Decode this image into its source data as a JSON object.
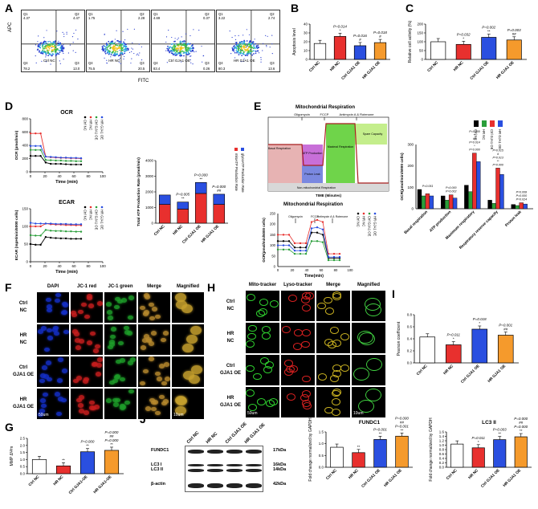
{
  "panels": {
    "A": "A",
    "B": "B",
    "C": "C",
    "D": "D",
    "E": "E",
    "F": "F",
    "G": "G",
    "H": "H",
    "I": "I",
    "J": "J"
  },
  "flow": {
    "ylabel": "APC",
    "xlabel": "FITC",
    "plots": [
      {
        "label": "Ctrl NC",
        "q1": "4.37",
        "q2": "4.47",
        "q3": "13.0",
        "q4": "78.2"
      },
      {
        "label": "HR NC",
        "q1": "1.75",
        "q2": "2.28",
        "q3": "20.5",
        "q4": "75.5"
      },
      {
        "label": "Ctrl GJA1 OE",
        "q1": "4.69",
        "q2": "0.37",
        "q3": "0.26",
        "q4": "83.4"
      },
      {
        "label": "HR GJA1 OE",
        "q1": "3.22",
        "q2": "2.74",
        "q3": "13.6",
        "q4": "80.3"
      }
    ],
    "quad_names": [
      "Q1",
      "Q2",
      "Q3",
      "Q4"
    ]
  },
  "chart_data": [
    {
      "type": "bar",
      "panel": "B",
      "categories": [
        "Ctrl NC",
        "HR NC",
        "Ctrl GJA1 OE",
        "HR GJA1 OE"
      ],
      "values": [
        18,
        26,
        15.5,
        19
      ],
      "ylabel": "Apoptosis level",
      "ylim": [
        0,
        40
      ],
      "yticks": [
        "0",
        "10",
        "20",
        "30",
        "40"
      ],
      "annotations": [
        "",
        "P=0.014\n*",
        "P=0.016\n#",
        "P=0.018\n#"
      ],
      "colors": [
        "#ffffff",
        "#e8302e",
        "#2a4fe0",
        "#f59a2c"
      ]
    },
    {
      "type": "bar",
      "panel": "C",
      "categories": [
        "Ctrl NC",
        "HR NC",
        "Ctrl GJA1 OE",
        "HR GJA1 OE"
      ],
      "values": [
        100,
        85,
        125,
        110
      ],
      "ylabel": "Relative cell activity (%)",
      "ylim": [
        0,
        200
      ],
      "yticks": [
        "0",
        "50",
        "100",
        "150",
        "200"
      ],
      "annotations": [
        "",
        "P=0.032\n*",
        "P=0.002\n**",
        "P=0.003\n##"
      ],
      "colors": [
        "#ffffff",
        "#e8302e",
        "#2a4fe0",
        "#f59a2c"
      ]
    },
    {
      "type": "line",
      "panel": "D-OCR",
      "title": "OCR",
      "xlabel": "Time (min)",
      "ylabel": "OCR (pmol/min)",
      "xlim": [
        0,
        100
      ],
      "ylim": [
        0,
        800
      ],
      "yticks": [
        "0",
        "200",
        "400",
        "600",
        "800"
      ],
      "xticks": [
        "0",
        "20",
        "40",
        "60",
        "80",
        "100"
      ],
      "x": [
        0,
        7,
        14,
        21,
        28,
        35,
        42,
        49,
        56,
        63,
        70
      ],
      "series": [
        {
          "name": "Ctrl NC",
          "color": "#000000",
          "values": [
            240,
            240,
            240,
            140,
            120,
            120,
            120,
            115,
            110,
            110,
            110
          ]
        },
        {
          "name": "HR NC",
          "color": "#e8302e",
          "values": [
            580,
            580,
            580,
            230,
            220,
            215,
            210,
            210,
            205,
            205,
            200
          ]
        },
        {
          "name": "Ctrl GJA1 OE",
          "color": "#2a9e3a",
          "values": [
            330,
            330,
            330,
            180,
            175,
            170,
            170,
            165,
            165,
            160,
            160
          ]
        },
        {
          "name": "HR GJA1 OE",
          "color": "#2a4fe0",
          "values": [
            390,
            390,
            390,
            230,
            225,
            220,
            215,
            215,
            210,
            210,
            205
          ]
        }
      ]
    },
    {
      "type": "line",
      "panel": "D-ECAR",
      "title": "ECAR",
      "xlabel": "Time (min)",
      "ylabel": "ECAR (mpH/min/5000 cells)",
      "xlim": [
        0,
        100
      ],
      "ylim": [
        0,
        150
      ],
      "yticks": [
        "0",
        "50",
        "100",
        "150"
      ],
      "xticks": [
        "0",
        "20",
        "40",
        "60",
        "80",
        "100"
      ],
      "x": [
        0,
        7,
        14,
        21,
        28,
        35,
        42,
        49,
        56,
        63,
        70
      ],
      "series": [
        {
          "name": "Ctrl NC",
          "color": "#000000",
          "values": [
            50,
            48,
            48,
            70,
            68,
            67,
            66,
            66,
            65,
            65,
            65
          ]
        },
        {
          "name": "HR NC",
          "color": "#e8302e",
          "values": [
            100,
            100,
            100,
            108,
            106,
            105,
            105,
            104,
            104,
            103,
            103
          ]
        },
        {
          "name": "Ctrl GJA1 OE",
          "color": "#2a9e3a",
          "values": [
            75,
            74,
            74,
            90,
            88,
            87,
            87,
            86,
            86,
            85,
            85
          ]
        },
        {
          "name": "HR GJA1 OE",
          "color": "#2a4fe0",
          "values": [
            110,
            108,
            108,
            108,
            108,
            107,
            107,
            107,
            106,
            106,
            106
          ]
        }
      ]
    },
    {
      "type": "bar",
      "panel": "D-ATP",
      "categories": [
        "Ctrl NC",
        "HR NC",
        "Ctrl GJA1 OE",
        "HR GJA1 OE"
      ],
      "ylabel": "Total ATP Production Rate (pmol/min)",
      "ylim": [
        0,
        4000
      ],
      "yticks": [
        "0",
        "1000",
        "2000",
        "3000",
        "4000"
      ],
      "series": [
        {
          "name": "mitoATP Production Rate",
          "color": "#e8302e",
          "values": [
            1200,
            900,
            1900,
            1200
          ]
        },
        {
          "name": "glycoATP Production Rate",
          "color": "#2a4fe0",
          "values": [
            600,
            450,
            700,
            650
          ]
        }
      ],
      "annotations": [
        "",
        "P=0.005\n**",
        "P=0.000\n**",
        "P=0.000\n##"
      ]
    },
    {
      "type": "bar",
      "panel": "E-bar",
      "categories": [
        "Basal respiration",
        "ATP production",
        "Maximum respiratory",
        "Respiratory reserve capacity",
        "Proton leak"
      ],
      "ylabel": "OCR(pmol/min/5000 cells)",
      "ylim": [
        0,
        300
      ],
      "yticks": [
        "0",
        "100",
        "200",
        "300"
      ],
      "series": [
        {
          "name": "Ctrl NC",
          "color": "#000000",
          "values": [
            90,
            60,
            110,
            40,
            20
          ]
        },
        {
          "name": "HR NC",
          "color": "#2a9e3a",
          "values": [
            60,
            40,
            80,
            25,
            15
          ]
        },
        {
          "name": "Ctrl GJA1 OE",
          "color": "#e8302e",
          "values": [
            70,
            65,
            260,
            190,
            28
          ]
        },
        {
          "name": "HR GJA1 OE",
          "color": "#2a4fe0",
          "values": [
            60,
            50,
            220,
            160,
            22
          ]
        }
      ],
      "annotations": [
        "P=0.051",
        "P=0.000\nP=0.002",
        "P=0.000\n**\n##\nP=0.014\n*\nP=0.000",
        "P=0.015\n#\nP=0.013\n**\nP=0.000",
        "P=0.008\nP=0.000\nP=0.024"
      ]
    },
    {
      "type": "bar",
      "panel": "G",
      "categories": [
        "Ctrl NC",
        "HR NC",
        "Ctrl GJA1-OE",
        "HR GJA1-OE"
      ],
      "values": [
        1.0,
        0.55,
        1.55,
        1.65
      ],
      "ylabel": "MMP ΔΨm",
      "ylim": [
        0,
        2.5
      ],
      "yticks": [
        "0.0",
        "0.5",
        "1.0",
        "1.5",
        "2.0",
        "2.5"
      ],
      "annotations": [
        "",
        "**",
        "P=0.000\n**",
        "P=0.000\n##\nP=0.000\n**"
      ],
      "colors": [
        "#ffffff",
        "#e8302e",
        "#2a4fe0",
        "#f59a2c"
      ]
    },
    {
      "type": "bar",
      "panel": "I",
      "categories": [
        "Ctrl NC",
        "HR NC",
        "Ctrl GJA1 OE",
        "HR GJA1 OE"
      ],
      "values": [
        0.43,
        0.3,
        0.56,
        0.46
      ],
      "ylabel": "Pearson coefficient",
      "ylim": [
        0,
        0.8
      ],
      "yticks": [
        "0.0",
        "0.2",
        "0.4",
        "0.6",
        "0.8"
      ],
      "annotations": [
        "",
        "P=0.011\n*",
        "P=0.018\n*",
        "P=0.001\n##"
      ],
      "colors": [
        "#ffffff",
        "#e8302e",
        "#2a4fe0",
        "#f59a2c"
      ]
    },
    {
      "type": "bar",
      "panel": "J-FUNDC1",
      "title": "FUNDC1",
      "categories": [
        "Ctrl NC",
        "HR NC",
        "Ctrl GJA1 OE",
        "HR GJA1 OE"
      ],
      "values": [
        0.85,
        0.62,
        1.18,
        1.32
      ],
      "ylabel": "Fold change normalized by GAPDH",
      "ylim": [
        0,
        1.5
      ],
      "yticks": [
        "0.0",
        "0.5",
        "1.0",
        "1.5"
      ],
      "annotations": [
        "",
        "**",
        "P=0.001\n**",
        "P=0.000\n##\nP=0.001\n**"
      ],
      "colors": [
        "#ffffff",
        "#e8302e",
        "#2a4fe0",
        "#f59a2c"
      ]
    },
    {
      "type": "bar",
      "panel": "J-LC3",
      "title": "LC3 II",
      "categories": [
        "Ctrl NC",
        "HR NC",
        "Ctrl GJA1 OE",
        "HR GJA1 OE"
      ],
      "values": [
        1.05,
        0.88,
        1.25,
        1.38
      ],
      "ylabel": "Fold change normalized by GAPDH",
      "ylim": [
        0,
        1.6
      ],
      "yticks": [
        "0.0",
        "0.2",
        "0.4",
        "0.6",
        "0.8",
        "1.0",
        "1.2",
        "1.4",
        "1.6"
      ],
      "annotations": [
        "",
        "P=0.011\n*",
        "P=0.003\n**",
        "P=0.000\n##\nP=0.000\n**"
      ],
      "colors": [
        "#ffffff",
        "#e8302e",
        "#2a4fe0",
        "#f59a2c"
      ]
    }
  ],
  "mito_resp": {
    "title": "Mitochondrial Respiration",
    "title2": "Mitochondrial Respiration",
    "time_label": "TIME (Minutes)",
    "time_label2": "Time(min)",
    "ylabel2": "OCR(pmol/min/5000 cells)",
    "injections": [
      "Oligomycin",
      "FCCP",
      "Antimycin A & Rotenone"
    ],
    "regions": [
      "Basal Respiration",
      "ATP Production",
      "Proton Leak",
      "Maximal Respiration",
      "Spare Capacity",
      "Non-mitochondrial Respiration"
    ],
    "legend": [
      "Ctrl NC",
      "HR NC",
      "Ctrl GJA1 OE",
      "HR GJA1 OE"
    ]
  },
  "jc1": {
    "headers": [
      "DAPI",
      "JC-1 red",
      "JC-1 green",
      "Merge",
      "Magnified"
    ],
    "rows": [
      [
        "Ctrl",
        "NC"
      ],
      [
        "HR",
        "NC"
      ],
      [
        "Ctrl",
        "GJA1 OE"
      ],
      [
        "HR",
        "GJA1 OE"
      ]
    ],
    "scale1": "50um",
    "scale2": "10um"
  },
  "mito": {
    "headers": [
      "Mito-tracker",
      "Lyso-tracker",
      "Merge",
      "Magnified"
    ],
    "rows": [
      [
        "Ctrl",
        "NC"
      ],
      [
        "HR",
        "NC"
      ],
      [
        "Ctrl",
        "GJA1 OE"
      ],
      [
        "HR",
        "GJA1 OE"
      ]
    ],
    "scale1": "50um",
    "scale2": "10um"
  },
  "western": {
    "lanes": [
      "Ctrl NC",
      "HR NC",
      "Ctrl GJA1 OE",
      "HR GJA1 OE"
    ],
    "proteins": [
      "FUNDC1",
      "LC3 I",
      "LC3 II",
      "β-actin"
    ],
    "sizes": [
      "17kDa",
      "16kDa",
      "14kDa",
      "42kDa"
    ]
  }
}
